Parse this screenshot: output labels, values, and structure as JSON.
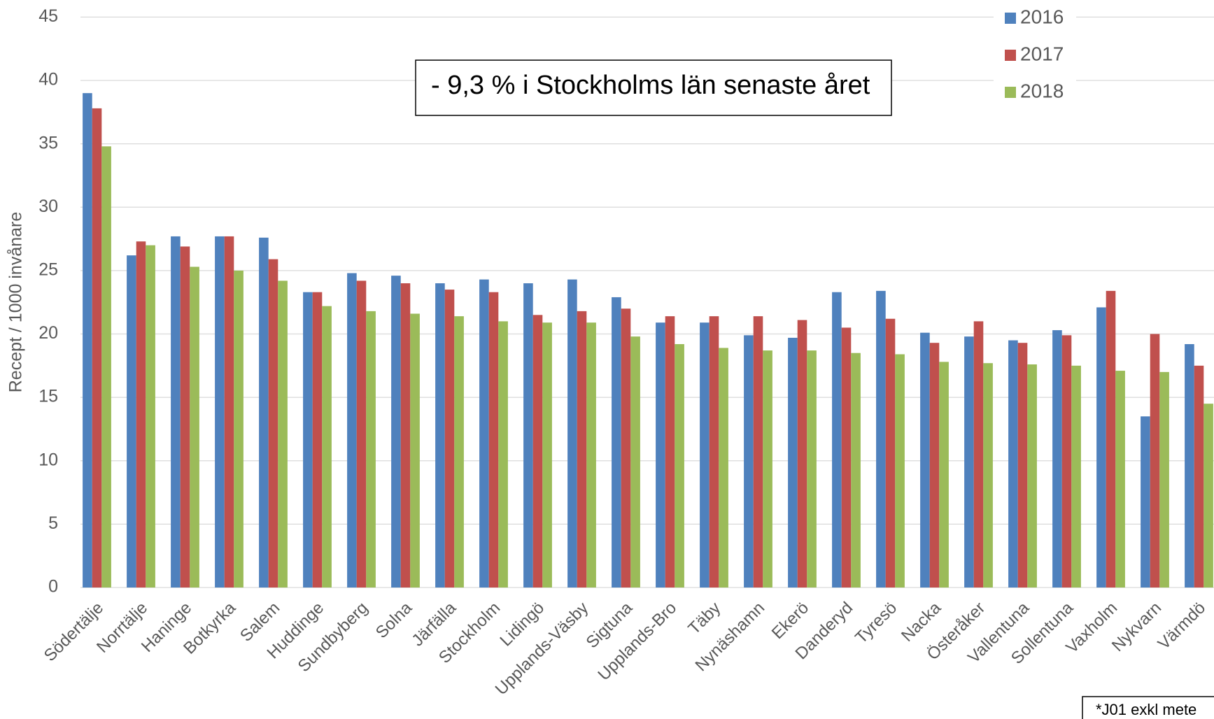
{
  "chart_data": {
    "type": "bar",
    "y_label": "Recept / 1000 invånare",
    "annotation": "- 9,3 % i Stockholms län senaste året",
    "footnote": "*J01 exkl mete",
    "categories": [
      "Södertälje",
      "Norrtälje",
      "Haninge",
      "Botkyrka",
      "Salem",
      "Huddinge",
      "Sundbyberg",
      "Solna",
      "Järfälla",
      "Stockholm",
      "Lidingö",
      "Upplands-Väsby",
      "Sigtuna",
      "Upplands-Bro",
      "Täby",
      "Nynäshamn",
      "Ekerö",
      "Danderyd",
      "Tyresö",
      "Nacka",
      "Österåker",
      "Vallentuna",
      "Sollentuna",
      "Vaxholm",
      "Nykvarn",
      "Värmdö"
    ],
    "series": [
      {
        "name": "2016",
        "color": "#4f81bd",
        "values": [
          39.0,
          26.2,
          27.7,
          27.7,
          27.6,
          23.3,
          24.8,
          24.6,
          24.0,
          24.3,
          24.0,
          24.3,
          22.9,
          20.9,
          20.9,
          19.9,
          19.7,
          23.3,
          23.4,
          20.1,
          19.8,
          19.5,
          20.3,
          22.1,
          13.5,
          19.2
        ]
      },
      {
        "name": "2017",
        "color": "#c0504d",
        "values": [
          37.8,
          27.3,
          26.9,
          27.7,
          25.9,
          23.3,
          24.2,
          24.0,
          23.5,
          23.3,
          21.5,
          21.8,
          22.0,
          21.4,
          21.4,
          21.4,
          21.1,
          20.5,
          21.2,
          19.3,
          21.0,
          19.3,
          19.9,
          23.4,
          20.0,
          17.5
        ]
      },
      {
        "name": "2018",
        "color": "#9bbb59",
        "values": [
          34.8,
          27.0,
          25.3,
          25.0,
          24.2,
          22.2,
          21.8,
          21.6,
          21.4,
          21.0,
          20.9,
          20.9,
          19.8,
          19.2,
          18.9,
          18.7,
          18.7,
          18.5,
          18.4,
          17.8,
          17.7,
          17.6,
          17.5,
          17.1,
          17.0,
          14.5
        ]
      }
    ],
    "ylim": [
      0,
      45
    ],
    "yticks": [
      0,
      5,
      10,
      15,
      20,
      25,
      30,
      35,
      40,
      45
    ],
    "grid": true,
    "legend": "top-right"
  }
}
